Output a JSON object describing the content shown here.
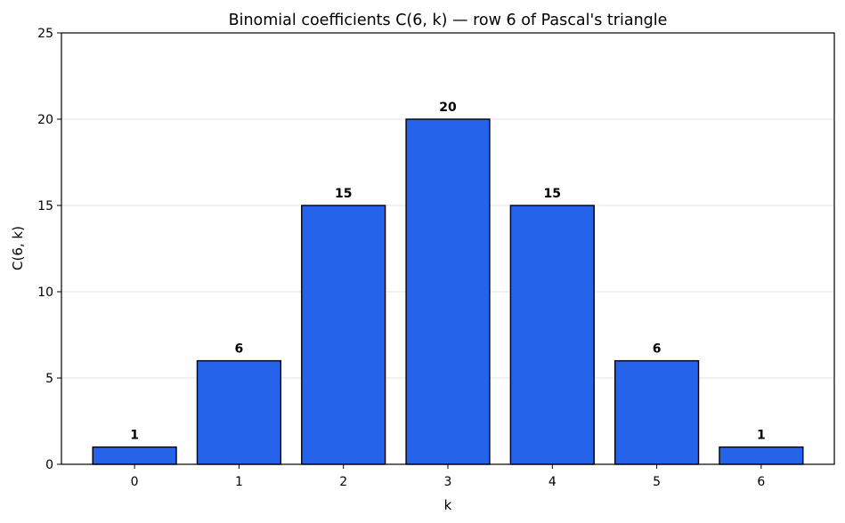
{
  "chart_data": {
    "type": "bar",
    "title": "Binomial coefficients C(6, k) — row 6 of Pascal's triangle",
    "xlabel": "k",
    "ylabel": "C(6, k)",
    "categories": [
      "0",
      "1",
      "2",
      "3",
      "4",
      "5",
      "6"
    ],
    "values": [
      1,
      6,
      15,
      20,
      15,
      6,
      1
    ],
    "data_labels": [
      "1",
      "6",
      "15",
      "20",
      "15",
      "6",
      "1"
    ],
    "ylim": [
      0,
      25
    ],
    "yticks": [
      0,
      5,
      10,
      15,
      20,
      25
    ],
    "grid": "horizontal",
    "legend": "none",
    "bar_color": "#2563eb",
    "bar_edge_color": "#000000"
  }
}
